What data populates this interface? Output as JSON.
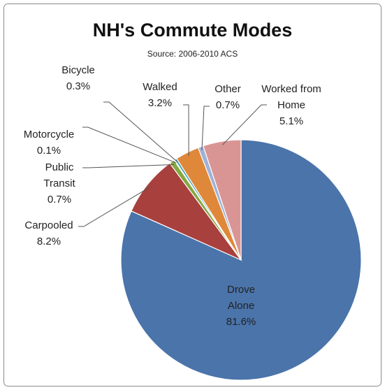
{
  "chart_data": {
    "type": "pie",
    "title": "NH's Commute Modes",
    "subtitle": "Source: 2006-2010 ACS",
    "categories": [
      "Drove Alone",
      "Carpooled",
      "Public Transit",
      "Motorcycle",
      "Bicycle",
      "Walked",
      "Other",
      "Worked from Home"
    ],
    "values": [
      81.6,
      8.2,
      0.7,
      0.1,
      0.3,
      3.2,
      0.7,
      5.1
    ],
    "value_labels": [
      "81.6%",
      "8.2%",
      "0.7%",
      "0.1%",
      "0.3%",
      "3.2%",
      "0.7%",
      "5.1%"
    ],
    "colors": [
      "#4a74aa",
      "#a8403e",
      "#86a840",
      "#6e5595",
      "#3a9ab2",
      "#e0883a",
      "#9fb2d6",
      "#d99594"
    ]
  }
}
